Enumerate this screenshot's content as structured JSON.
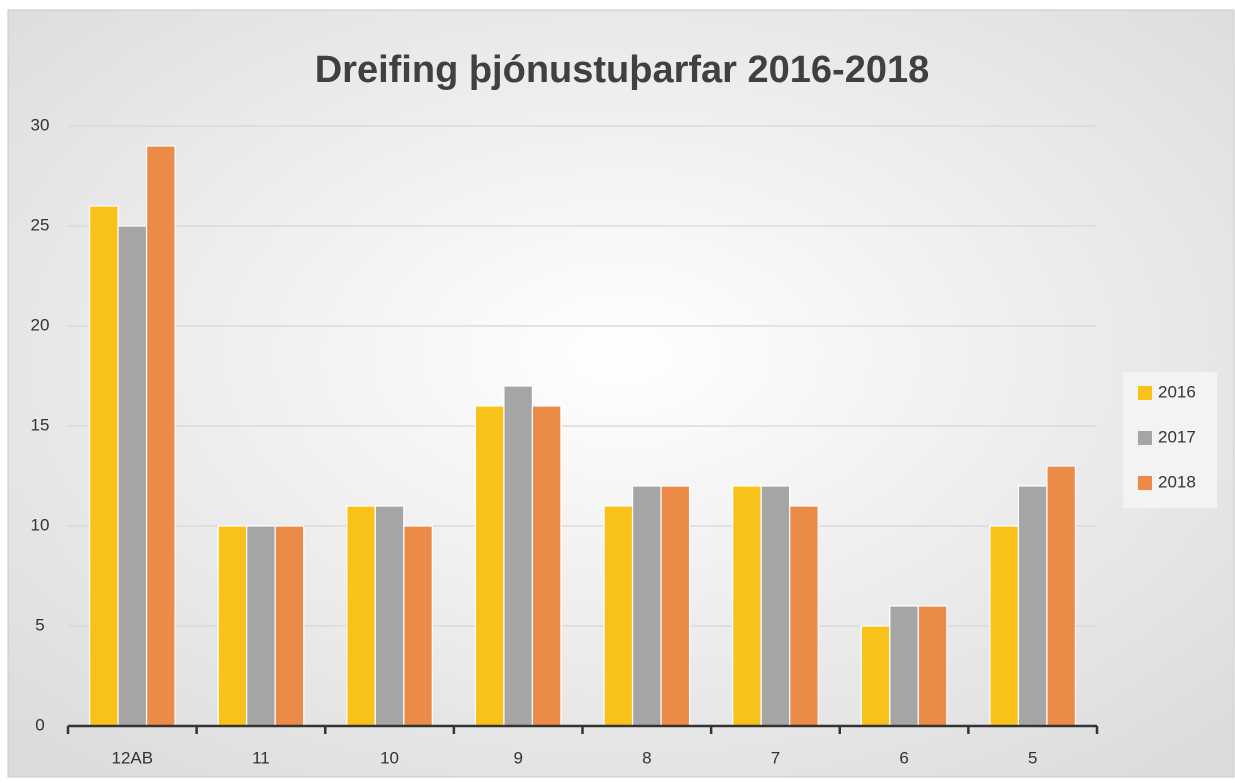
{
  "chart_data": {
    "type": "bar",
    "title": "Dreifing þjónustuþarfar 2016-2018",
    "categories": [
      "12AB",
      "11",
      "10",
      "9",
      "8",
      "7",
      "6",
      "5"
    ],
    "series": [
      {
        "name": "2016",
        "color": "#f9c21a",
        "values": [
          26,
          10,
          11,
          16,
          11,
          12,
          5,
          10
        ]
      },
      {
        "name": "2017",
        "color": "#a5a5a5",
        "values": [
          25,
          10,
          11,
          17,
          12,
          12,
          6,
          12
        ]
      },
      {
        "name": "2018",
        "color": "#ec8b48",
        "values": [
          29,
          10,
          10,
          16,
          12,
          11,
          6,
          13
        ]
      }
    ],
    "ylim": [
      0,
      30
    ],
    "yticks": [
      0,
      5,
      10,
      15,
      20,
      25,
      30
    ],
    "grid": true,
    "legend": "right"
  }
}
